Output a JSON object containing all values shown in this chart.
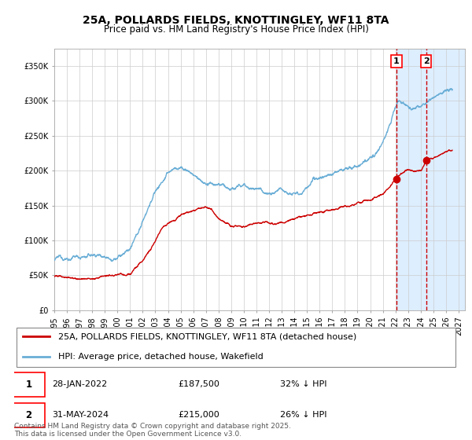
{
  "title": "25A, POLLARDS FIELDS, KNOTTINGLEY, WF11 8TA",
  "subtitle": "Price paid vs. HM Land Registry's House Price Index (HPI)",
  "xlim_start": 1995.0,
  "xlim_end": 2027.5,
  "ylim": [
    0,
    375000
  ],
  "yticks": [
    0,
    50000,
    100000,
    150000,
    200000,
    250000,
    300000,
    350000
  ],
  "ytick_labels": [
    "£0",
    "£50K",
    "£100K",
    "£150K",
    "£200K",
    "£250K",
    "£300K",
    "£350K"
  ],
  "xticks": [
    1995,
    1996,
    1997,
    1998,
    1999,
    2000,
    2001,
    2002,
    2003,
    2004,
    2005,
    2006,
    2007,
    2008,
    2009,
    2010,
    2011,
    2012,
    2013,
    2014,
    2015,
    2016,
    2017,
    2018,
    2019,
    2020,
    2021,
    2022,
    2023,
    2024,
    2025,
    2026,
    2027
  ],
  "hpi_color": "#6aaed6",
  "price_color": "#cc0000",
  "marker_color": "#cc0000",
  "vline1_color": "#cc0000",
  "vline2_color": "#cc0000",
  "shade_color": "#ddeeff",
  "grid_color": "#cccccc",
  "background_color": "#ffffff",
  "legend1": "25A, POLLARDS FIELDS, KNOTTINGLEY, WF11 8TA (detached house)",
  "legend2": "HPI: Average price, detached house, Wakefield",
  "marker1_year": 2022.08,
  "marker1_price": 187500,
  "marker2_year": 2024.42,
  "marker2_price": 215000,
  "label1_text": "1",
  "label2_text": "2",
  "footnote": "Contains HM Land Registry data © Crown copyright and database right 2025.\nThis data is licensed under the Open Government Licence v3.0.",
  "title_fontsize": 10,
  "subtitle_fontsize": 8.5,
  "tick_fontsize": 7,
  "legend_fontsize": 8,
  "ann_fontsize": 8,
  "footnote_fontsize": 6.5,
  "hpi_anchors": [
    [
      1995.0,
      72000
    ],
    [
      1995.5,
      73000
    ],
    [
      1996.0,
      74500
    ],
    [
      1996.5,
      75500
    ],
    [
      1997.0,
      77000
    ],
    [
      1997.5,
      78000
    ],
    [
      1998.0,
      79000
    ],
    [
      1998.5,
      80000
    ],
    [
      1999.0,
      81000
    ],
    [
      1999.5,
      82500
    ],
    [
      2000.0,
      84000
    ],
    [
      2000.5,
      88000
    ],
    [
      2001.0,
      95000
    ],
    [
      2001.5,
      108000
    ],
    [
      2002.0,
      130000
    ],
    [
      2002.5,
      155000
    ],
    [
      2003.0,
      175000
    ],
    [
      2003.5,
      188000
    ],
    [
      2004.0,
      200000
    ],
    [
      2004.5,
      207000
    ],
    [
      2005.0,
      208000
    ],
    [
      2005.5,
      205000
    ],
    [
      2006.0,
      200000
    ],
    [
      2006.5,
      192000
    ],
    [
      2007.0,
      185000
    ],
    [
      2007.5,
      182000
    ],
    [
      2008.0,
      180000
    ],
    [
      2008.5,
      176000
    ],
    [
      2009.0,
      173000
    ],
    [
      2009.5,
      175000
    ],
    [
      2010.0,
      178000
    ],
    [
      2010.5,
      177000
    ],
    [
      2011.0,
      175000
    ],
    [
      2011.5,
      174000
    ],
    [
      2012.0,
      174000
    ],
    [
      2012.5,
      175000
    ],
    [
      2013.0,
      176000
    ],
    [
      2013.5,
      178000
    ],
    [
      2014.0,
      182000
    ],
    [
      2014.5,
      186000
    ],
    [
      2015.0,
      191000
    ],
    [
      2015.5,
      195000
    ],
    [
      2016.0,
      198000
    ],
    [
      2016.5,
      202000
    ],
    [
      2017.0,
      207000
    ],
    [
      2017.5,
      210000
    ],
    [
      2018.0,
      213000
    ],
    [
      2018.5,
      215000
    ],
    [
      2019.0,
      217000
    ],
    [
      2019.5,
      220000
    ],
    [
      2020.0,
      222000
    ],
    [
      2020.5,
      228000
    ],
    [
      2021.0,
      240000
    ],
    [
      2021.5,
      262000
    ],
    [
      2022.0,
      290000
    ],
    [
      2022.2,
      300000
    ],
    [
      2022.5,
      298000
    ],
    [
      2023.0,
      292000
    ],
    [
      2023.5,
      288000
    ],
    [
      2024.0,
      291000
    ],
    [
      2024.5,
      295000
    ],
    [
      2025.0,
      298000
    ],
    [
      2025.5,
      302000
    ],
    [
      2026.0,
      305000
    ],
    [
      2026.5,
      308000
    ]
  ],
  "price_anchors": [
    [
      1995.0,
      48000
    ],
    [
      1996.0,
      48500
    ],
    [
      1997.0,
      49000
    ],
    [
      1998.0,
      50000
    ],
    [
      1999.0,
      51000
    ],
    [
      2000.0,
      53000
    ],
    [
      2001.0,
      57000
    ],
    [
      2002.0,
      72000
    ],
    [
      2003.0,
      100000
    ],
    [
      2003.5,
      118000
    ],
    [
      2004.0,
      128000
    ],
    [
      2004.5,
      135000
    ],
    [
      2005.0,
      140000
    ],
    [
      2005.5,
      143000
    ],
    [
      2006.0,
      145000
    ],
    [
      2006.5,
      146000
    ],
    [
      2007.0,
      147000
    ],
    [
      2007.5,
      143000
    ],
    [
      2008.0,
      132000
    ],
    [
      2008.5,
      124000
    ],
    [
      2009.0,
      120000
    ],
    [
      2009.5,
      119000
    ],
    [
      2010.0,
      120000
    ],
    [
      2010.5,
      121000
    ],
    [
      2011.0,
      122000
    ],
    [
      2011.5,
      121000
    ],
    [
      2012.0,
      120000
    ],
    [
      2012.5,
      121000
    ],
    [
      2013.0,
      122000
    ],
    [
      2013.5,
      123000
    ],
    [
      2014.0,
      124000
    ],
    [
      2014.5,
      126000
    ],
    [
      2015.0,
      128000
    ],
    [
      2015.5,
      130000
    ],
    [
      2016.0,
      133000
    ],
    [
      2016.5,
      136000
    ],
    [
      2017.0,
      138000
    ],
    [
      2017.5,
      140000
    ],
    [
      2018.0,
      143000
    ],
    [
      2018.5,
      145000
    ],
    [
      2019.0,
      148000
    ],
    [
      2019.5,
      150000
    ],
    [
      2020.0,
      153000
    ],
    [
      2020.5,
      157000
    ],
    [
      2021.0,
      163000
    ],
    [
      2021.5,
      172000
    ],
    [
      2022.0,
      183000
    ],
    [
      2022.08,
      187500
    ],
    [
      2022.5,
      193000
    ],
    [
      2023.0,
      198000
    ],
    [
      2023.5,
      197000
    ],
    [
      2024.0,
      200000
    ],
    [
      2024.42,
      215000
    ],
    [
      2024.5,
      216000
    ],
    [
      2025.0,
      220000
    ],
    [
      2025.5,
      222000
    ],
    [
      2026.0,
      224000
    ],
    [
      2026.5,
      226000
    ]
  ]
}
